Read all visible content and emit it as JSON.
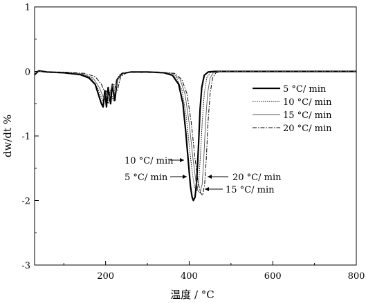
{
  "chart_data": {
    "type": "line",
    "title": "",
    "xlabel": "温度 / °C",
    "ylabel": "dw/dt %",
    "xlim": [
      30,
      800
    ],
    "ylim": [
      -3,
      1
    ],
    "xticks": [
      200,
      400,
      600,
      800
    ],
    "yticks": [
      -3,
      -2,
      -1,
      0,
      1
    ],
    "grid": false,
    "legend": "right",
    "series": [
      {
        "name": "5 °C/ min",
        "style": "solid-thick",
        "color": "#000000",
        "points": [
          [
            30,
            -0.05
          ],
          [
            40,
            0.01
          ],
          [
            60,
            -0.01
          ],
          [
            100,
            -0.02
          ],
          [
            140,
            -0.05
          ],
          [
            160,
            -0.1
          ],
          [
            175,
            -0.2
          ],
          [
            185,
            -0.4
          ],
          [
            190,
            -0.5
          ],
          [
            194,
            -0.55
          ],
          [
            198,
            -0.3
          ],
          [
            202,
            -0.55
          ],
          [
            206,
            -0.25
          ],
          [
            212,
            -0.5
          ],
          [
            216,
            -0.2
          ],
          [
            222,
            -0.45
          ],
          [
            228,
            -0.12
          ],
          [
            240,
            -0.03
          ],
          [
            260,
            -0.01
          ],
          [
            300,
            -0.01
          ],
          [
            340,
            -0.02
          ],
          [
            360,
            -0.06
          ],
          [
            375,
            -0.2
          ],
          [
            385,
            -0.5
          ],
          [
            392,
            -0.95
          ],
          [
            398,
            -1.4
          ],
          [
            403,
            -1.78
          ],
          [
            407,
            -1.95
          ],
          [
            410,
            -2.0
          ],
          [
            414,
            -1.95
          ],
          [
            418,
            -1.7
          ],
          [
            422,
            -1.2
          ],
          [
            426,
            -0.6
          ],
          [
            430,
            -0.25
          ],
          [
            436,
            -0.06
          ],
          [
            445,
            -0.01
          ],
          [
            460,
            0.0
          ],
          [
            600,
            0.0
          ],
          [
            800,
            0.0
          ]
        ]
      },
      {
        "name": "10 °C/ min",
        "style": "dotted",
        "color": "#000000",
        "points": [
          [
            30,
            -0.05
          ],
          [
            40,
            0.0
          ],
          [
            60,
            -0.01
          ],
          [
            100,
            -0.02
          ],
          [
            140,
            -0.04
          ],
          [
            165,
            -0.1
          ],
          [
            180,
            -0.25
          ],
          [
            190,
            -0.4
          ],
          [
            196,
            -0.5
          ],
          [
            200,
            -0.3
          ],
          [
            206,
            -0.5
          ],
          [
            212,
            -0.28
          ],
          [
            218,
            -0.45
          ],
          [
            224,
            -0.15
          ],
          [
            235,
            -0.04
          ],
          [
            260,
            -0.01
          ],
          [
            310,
            -0.01
          ],
          [
            350,
            -0.03
          ],
          [
            370,
            -0.1
          ],
          [
            383,
            -0.3
          ],
          [
            393,
            -0.7
          ],
          [
            401,
            -1.2
          ],
          [
            408,
            -1.6
          ],
          [
            413,
            -1.8
          ],
          [
            418,
            -1.85
          ],
          [
            423,
            -1.7
          ],
          [
            427,
            -1.3
          ],
          [
            431,
            -0.8
          ],
          [
            436,
            -0.35
          ],
          [
            442,
            -0.1
          ],
          [
            450,
            -0.02
          ],
          [
            465,
            0.0
          ],
          [
            600,
            0.0
          ],
          [
            800,
            0.0
          ]
        ]
      },
      {
        "name": "15 °C/ min",
        "style": "thin-solid",
        "color": "#555555",
        "points": [
          [
            30,
            -0.05
          ],
          [
            40,
            0.0
          ],
          [
            60,
            -0.01
          ],
          [
            100,
            -0.01
          ],
          [
            145,
            -0.04
          ],
          [
            170,
            -0.1
          ],
          [
            185,
            -0.25
          ],
          [
            196,
            -0.42
          ],
          [
            202,
            -0.3
          ],
          [
            208,
            -0.45
          ],
          [
            215,
            -0.2
          ],
          [
            222,
            -0.35
          ],
          [
            230,
            -0.1
          ],
          [
            245,
            -0.02
          ],
          [
            270,
            -0.01
          ],
          [
            320,
            -0.01
          ],
          [
            360,
            -0.03
          ],
          [
            378,
            -0.12
          ],
          [
            390,
            -0.35
          ],
          [
            400,
            -0.8
          ],
          [
            409,
            -1.35
          ],
          [
            416,
            -1.7
          ],
          [
            421,
            -1.85
          ],
          [
            426,
            -1.88
          ],
          [
            431,
            -1.75
          ],
          [
            435,
            -1.35
          ],
          [
            439,
            -0.8
          ],
          [
            444,
            -0.35
          ],
          [
            450,
            -0.1
          ],
          [
            458,
            -0.02
          ],
          [
            470,
            0.0
          ],
          [
            600,
            0.0
          ],
          [
            800,
            0.0
          ]
        ]
      },
      {
        "name": "20 °C/ min",
        "style": "dash-dot",
        "color": "#000000",
        "points": [
          [
            30,
            -0.05
          ],
          [
            40,
            0.0
          ],
          [
            60,
            -0.01
          ],
          [
            100,
            -0.01
          ],
          [
            150,
            -0.03
          ],
          [
            175,
            -0.08
          ],
          [
            190,
            -0.2
          ],
          [
            200,
            -0.35
          ],
          [
            206,
            -0.28
          ],
          [
            212,
            -0.4
          ],
          [
            220,
            -0.2
          ],
          [
            228,
            -0.3
          ],
          [
            236,
            -0.08
          ],
          [
            250,
            -0.02
          ],
          [
            280,
            -0.01
          ],
          [
            330,
            -0.01
          ],
          [
            365,
            -0.03
          ],
          [
            382,
            -0.12
          ],
          [
            395,
            -0.35
          ],
          [
            405,
            -0.8
          ],
          [
            414,
            -1.35
          ],
          [
            421,
            -1.7
          ],
          [
            427,
            -1.88
          ],
          [
            432,
            -1.92
          ],
          [
            437,
            -1.75
          ],
          [
            441,
            -1.35
          ],
          [
            445,
            -0.8
          ],
          [
            450,
            -0.35
          ],
          [
            456,
            -0.1
          ],
          [
            464,
            -0.02
          ],
          [
            475,
            0.0
          ],
          [
            600,
            0.0
          ],
          [
            800,
            0.0
          ]
        ]
      }
    ],
    "annotations": [
      {
        "text": "10 °C/ min",
        "arrow": "right"
      },
      {
        "text": "5 °C/ min",
        "arrow": "right"
      },
      {
        "text": "20 °C/ min",
        "arrow": "left"
      },
      {
        "text": "15 °C/ min",
        "arrow": "left"
      }
    ]
  }
}
